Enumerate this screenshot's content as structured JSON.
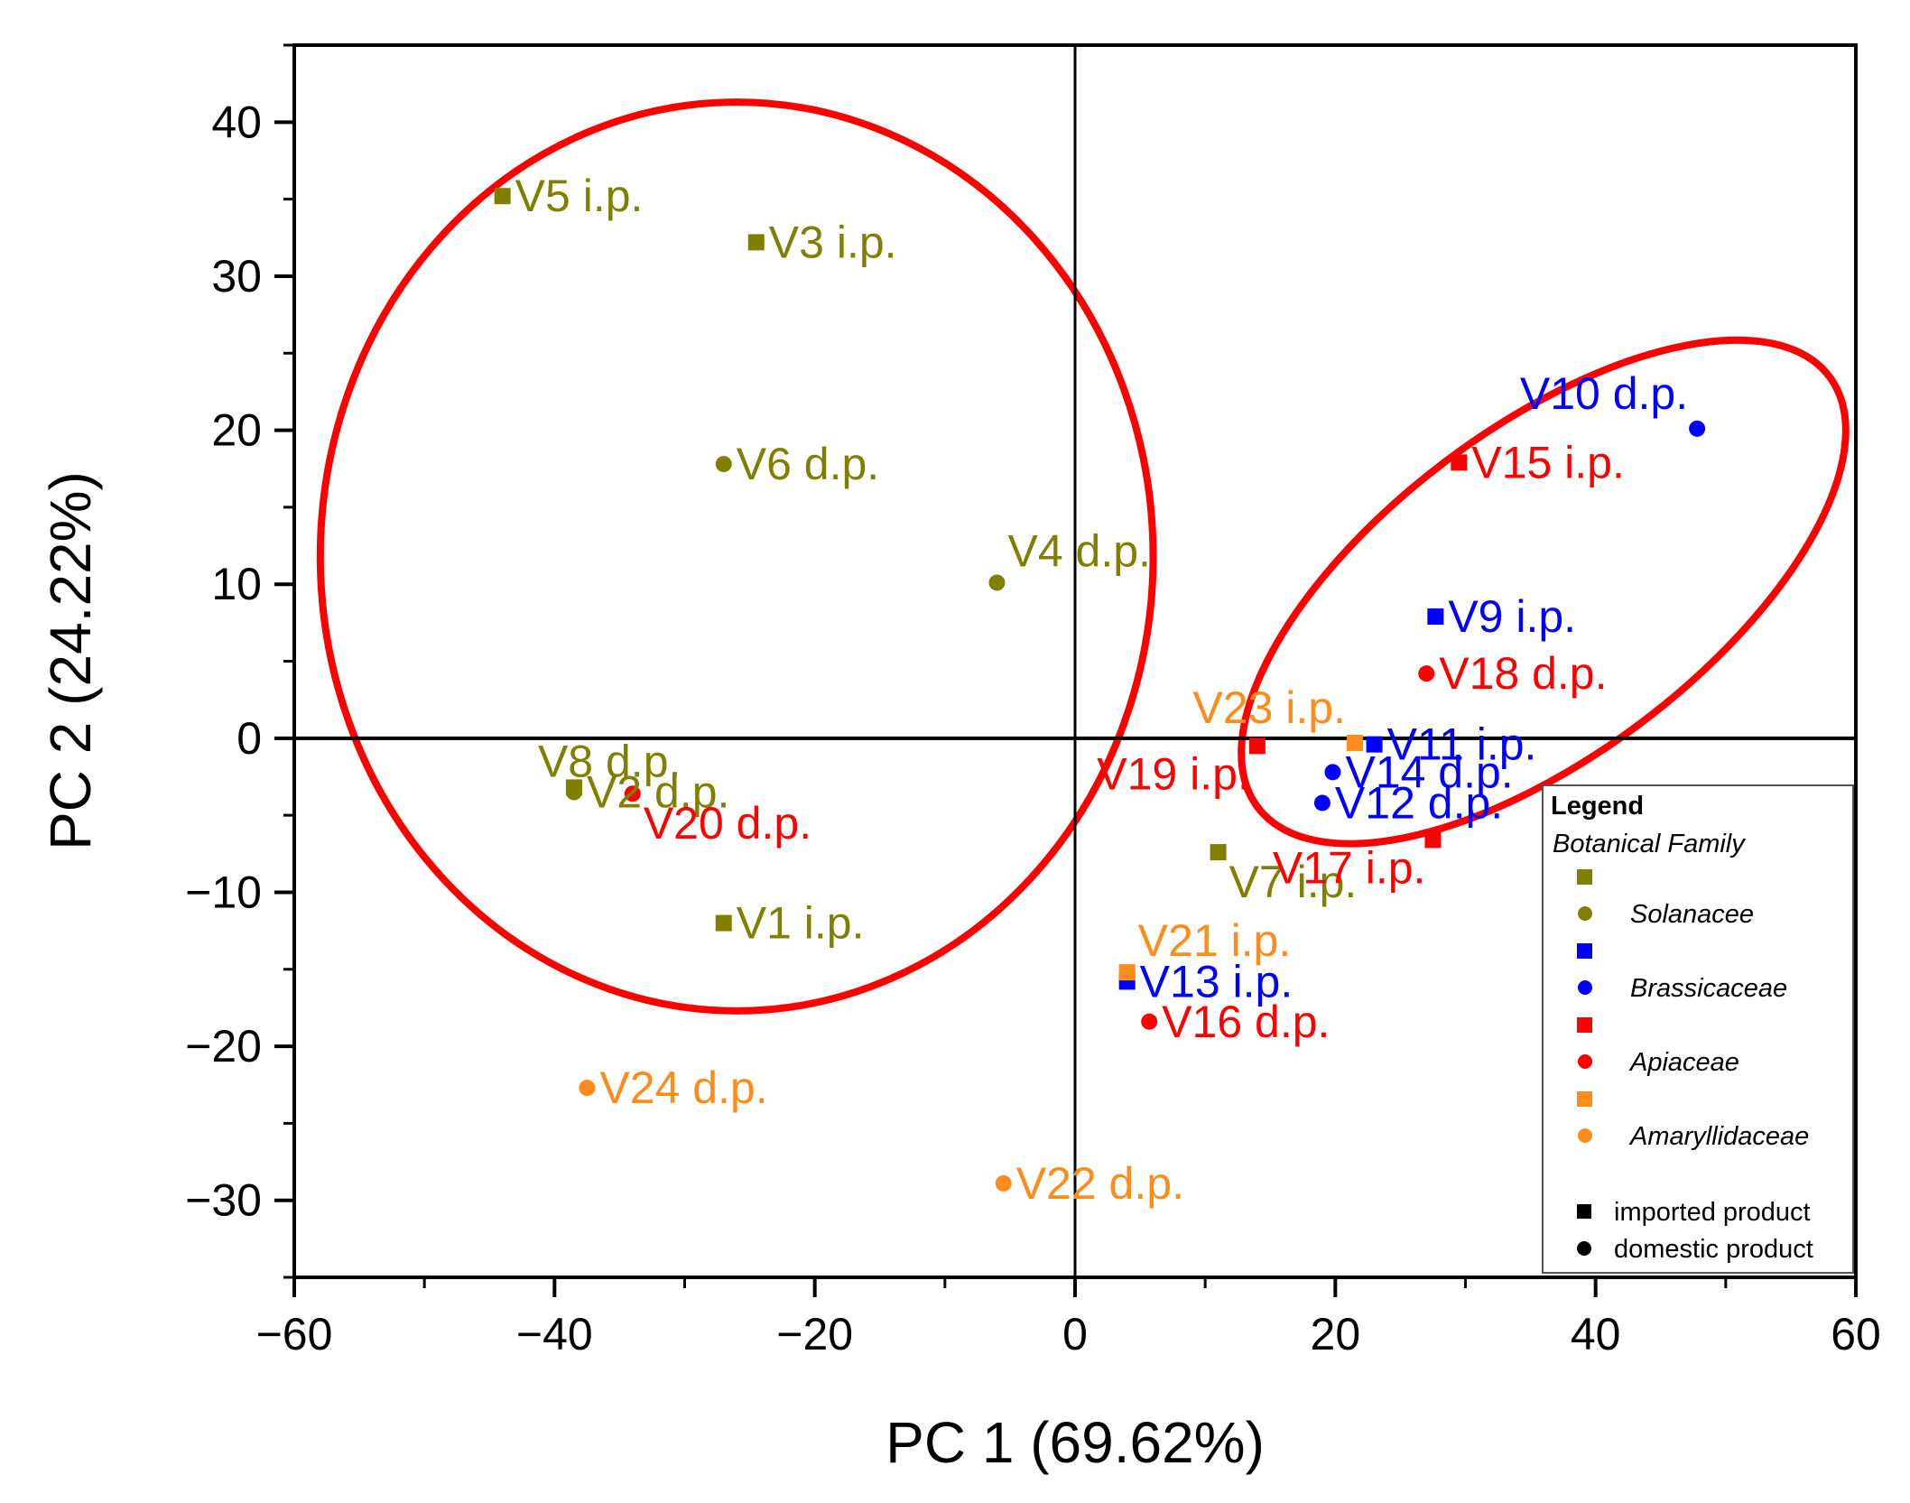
{
  "chart_data": {
    "type": "scatter",
    "xlabel": "PC 1 (69.62%)",
    "ylabel": "PC 2 (24.22%)",
    "xlim": [
      -60,
      60
    ],
    "ylim": [
      -35,
      45
    ],
    "xticks": [
      -60,
      -40,
      -20,
      0,
      20,
      40,
      60
    ],
    "yticks": [
      -30,
      -20,
      -10,
      0,
      10,
      20,
      30,
      40
    ],
    "xtick_labels": [
      "−60",
      "−40",
      "−20",
      "0",
      "20",
      "40",
      "60"
    ],
    "ytick_labels": [
      "−30",
      "−20",
      "−10",
      "0",
      "10",
      "20",
      "30",
      "40"
    ],
    "families": [
      {
        "name": "Solanacee",
        "color": "#808000"
      },
      {
        "name": "Brassicaceae",
        "color": "#0000FF"
      },
      {
        "name": "Apiaceae",
        "color": "#FF0000"
      },
      {
        "name": "Amaryllidaceae",
        "color": "#FF8C1A"
      }
    ],
    "points": [
      {
        "label": "V1 i.p.",
        "x": -27,
        "y": -12,
        "family": "Solanacee",
        "shape": "square",
        "label_pos": "right"
      },
      {
        "label": "V2 d.p.",
        "x": -38.5,
        "y": -3.5,
        "family": "Solanacee",
        "shape": "circle",
        "label_pos": "right"
      },
      {
        "label": "V3 i.p.",
        "x": -24.5,
        "y": 32.2,
        "family": "Solanacee",
        "shape": "square",
        "label_pos": "right"
      },
      {
        "label": "V4 d.p.",
        "x": -6,
        "y": 10.1,
        "family": "Solanacee",
        "shape": "circle",
        "label_pos": "above-right"
      },
      {
        "label": "V5 i.p.",
        "x": -44,
        "y": 35.2,
        "family": "Solanacee",
        "shape": "square",
        "label_pos": "right"
      },
      {
        "label": "V6 d.p.",
        "x": -27,
        "y": 17.8,
        "family": "Solanacee",
        "shape": "circle",
        "label_pos": "right"
      },
      {
        "label": "V7 i.p.",
        "x": 11,
        "y": -7.4,
        "family": "Solanacee",
        "shape": "square",
        "label_pos": "below-right"
      },
      {
        "label": "V8 d.p.",
        "x": -38.5,
        "y": -3.2,
        "family": "Solanacee",
        "shape": "square",
        "label_pos": "above"
      },
      {
        "label": "V9 i.p.",
        "x": 27.7,
        "y": 7.9,
        "family": "Brassicaceae",
        "shape": "square",
        "label_pos": "right"
      },
      {
        "label": "V10 d.p.",
        "x": 47.8,
        "y": 20.1,
        "family": "Brassicaceae",
        "shape": "circle",
        "label_pos": "above-left"
      },
      {
        "label": "V11 i.p.",
        "x": 23,
        "y": -0.4,
        "family": "Brassicaceae",
        "shape": "square",
        "label_pos": "right"
      },
      {
        "label": "V12 d.p.",
        "x": 19,
        "y": -4.2,
        "family": "Brassicaceae",
        "shape": "circle",
        "label_pos": "right"
      },
      {
        "label": "V13 i.p.",
        "x": 4,
        "y": -15.8,
        "family": "Brassicaceae",
        "shape": "square",
        "label_pos": "right"
      },
      {
        "label": "V14 d.p.",
        "x": 19.8,
        "y": -2.2,
        "family": "Brassicaceae",
        "shape": "circle",
        "label_pos": "right"
      },
      {
        "label": "V15 i.p.",
        "x": 29.5,
        "y": 17.9,
        "family": "Apiaceae",
        "shape": "square",
        "label_pos": "right"
      },
      {
        "label": "V16 d.p.",
        "x": 5.7,
        "y": -18.4,
        "family": "Apiaceae",
        "shape": "circle",
        "label_pos": "right"
      },
      {
        "label": "V17 i.p.",
        "x": 27.5,
        "y": -6.6,
        "family": "Apiaceae",
        "shape": "square",
        "label_pos": "below-left"
      },
      {
        "label": "V18 d.p.",
        "x": 27,
        "y": 4.2,
        "family": "Apiaceae",
        "shape": "circle",
        "label_pos": "right"
      },
      {
        "label": "V19 i.p.",
        "x": 14,
        "y": -0.5,
        "family": "Apiaceae",
        "shape": "square",
        "label_pos": "below-left"
      },
      {
        "label": "V20 d.p.",
        "x": -34,
        "y": -3.6,
        "family": "Apiaceae",
        "shape": "circle",
        "label_pos": "below-right"
      },
      {
        "label": "V21 i.p.",
        "x": 4,
        "y": -15.2,
        "family": "Amaryllidaceae",
        "shape": "square",
        "label_pos": "above-right"
      },
      {
        "label": "V22 d.p.",
        "x": -5.5,
        "y": -28.9,
        "family": "Amaryllidaceae",
        "shape": "circle",
        "label_pos": "right"
      },
      {
        "label": "V23 i.p.",
        "x": 21.5,
        "y": -0.3,
        "family": "Amaryllidaceae",
        "shape": "square",
        "label_pos": "above-left"
      },
      {
        "label": "V24 d.p.",
        "x": -37.5,
        "y": -22.7,
        "family": "Amaryllidaceae",
        "shape": "circle",
        "label_pos": "right"
      }
    ],
    "ellipses": [
      {
        "cx": -26,
        "cy": 11.8,
        "rx": 32,
        "ry": 29.5,
        "rotate": 0,
        "color": "#FF0000"
      },
      {
        "cx": 36,
        "cy": 9.5,
        "rx": 27.5,
        "ry": 10.6,
        "rotate": -37,
        "color": "#FF0000"
      }
    ],
    "legend": {
      "title": "Legend",
      "subtitle": "Botanical Family",
      "shape_entries": [
        "imported product",
        "domestic product"
      ],
      "position": "lower-right"
    }
  }
}
